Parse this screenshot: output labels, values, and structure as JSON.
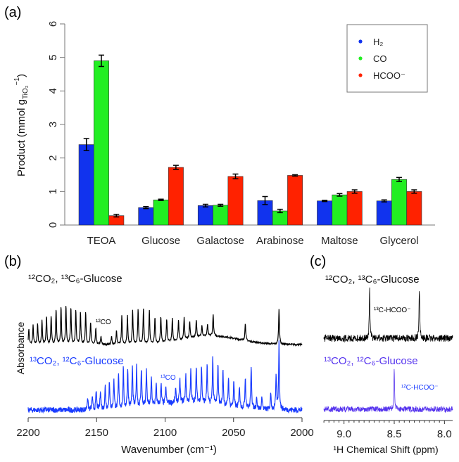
{
  "chart_data": [
    {
      "panel_label": "(a)",
      "type": "bar",
      "title": "",
      "xlabel": "",
      "ylabel": "Product (mmol g",
      "ylabel_sub": "TiO₂",
      "ylabel_sup": "−1",
      "ylabel_close": ")",
      "ylim": [
        0,
        6
      ],
      "yticks": [
        "0",
        "1",
        "2",
        "3",
        "4",
        "5",
        "6"
      ],
      "grid": false,
      "legend_position": "top-right",
      "categories": [
        "TEOA",
        "Glucose",
        "Galactose",
        "Arabinose",
        "Maltose",
        "Glycerol"
      ],
      "series": [
        {
          "name": "H₂",
          "color": "#1133ee",
          "values": [
            2.4,
            0.52,
            0.58,
            0.73,
            0.72,
            0.72
          ],
          "errors": [
            0.18,
            0.03,
            0.04,
            0.12,
            0.02,
            0.03
          ]
        },
        {
          "name": "CO",
          "color": "#22ee22",
          "values": [
            4.9,
            0.75,
            0.59,
            0.42,
            0.9,
            1.36
          ],
          "errors": [
            0.17,
            0.02,
            0.03,
            0.05,
            0.04,
            0.06
          ]
        },
        {
          "name": "HCOO⁻",
          "color": "#ff2200",
          "values": [
            0.28,
            1.72,
            1.45,
            1.48,
            1.0,
            1.0
          ],
          "errors": [
            0.04,
            0.06,
            0.07,
            0.02,
            0.05,
            0.05
          ]
        }
      ]
    },
    {
      "panel_label": "(b)",
      "type": "line",
      "xlabel": "Wavenumber (cm⁻¹)",
      "ylabel": "Absorbance",
      "xlim": [
        2200,
        2000
      ],
      "xticks": [
        "2200",
        "2150",
        "2100",
        "2050",
        "2000"
      ],
      "series": [
        {
          "name": "¹²CO₂, ¹³C₆-Glucose",
          "color": "#000000",
          "annotation": "¹²CO",
          "peaks_wavenumber": [
            2199.5,
            2196.4,
            2193.1,
            2189.9,
            2186.6,
            2183.2,
            2179.6,
            2176,
            2172.4,
            2168.8,
            2165.2,
            2161.8,
            2158,
            2154.4,
            2150.6,
            2146.8,
            2139.1,
            2135.5,
            2131.6,
            2127.5,
            2123.7,
            2119.7,
            2115.8,
            2111.5,
            2107.4,
            2103.1,
            2098.8,
            2094.7,
            2090.2,
            2086.1,
            2082,
            2077.2,
            2073.1,
            2069,
            2064.9,
            2041.4,
            2016.8
          ],
          "peaks_height": [
            0.4,
            0.48,
            0.52,
            0.62,
            0.72,
            0.72,
            0.9,
            0.95,
            1.0,
            0.95,
            0.88,
            0.84,
            0.82,
            0.58,
            0.4,
            0.2,
            0.2,
            0.35,
            0.72,
            0.72,
            0.88,
            0.88,
            0.88,
            0.85,
            0.68,
            0.68,
            0.6,
            0.58,
            0.5,
            0.55,
            0.42,
            0.45,
            0.3,
            0.3,
            0.55,
            0.45,
            0.9
          ]
        },
        {
          "name": "¹³CO₂, ¹²C₆-Glucose",
          "color": "#1a3cff",
          "annotation": "¹³CO",
          "peaks_wavenumber": [
            2156.6,
            2153.2,
            2150.3,
            2147.2,
            2143.7,
            2140.7,
            2137.4,
            2134,
            2130.5,
            2127.3,
            2123.9,
            2120.8,
            2117.3,
            2113.6,
            2110,
            2106.5,
            2102.9,
            2099.5,
            2092.3,
            2089.2,
            2084.9,
            2081.2,
            2077.2,
            2073.4,
            2069.3,
            2065.2,
            2061.4,
            2057.7,
            2053.7,
            2049.8,
            2045.7,
            2041.4,
            2037.1,
            2033.1,
            2029.2,
            2022.8,
            2018.9,
            2016.8
          ],
          "peaks_height": [
            0.33,
            0.34,
            0.48,
            0.51,
            0.6,
            0.68,
            0.78,
            0.87,
            1.0,
            1.02,
            1.02,
            1.02,
            0.99,
            0.9,
            0.7,
            0.51,
            0.48,
            0.42,
            0.33,
            0.57,
            0.68,
            0.8,
            0.87,
            0.93,
            0.96,
            1.18,
            1.05,
            0.9,
            0.75,
            0.66,
            0.57,
            0.81,
            1.11,
            0.33,
            0.34,
            0.4,
            0.87,
            1.7
          ]
        }
      ]
    },
    {
      "panel_label": "(c)",
      "type": "line",
      "xlabel": "¹H Chemical Shift (ppm)",
      "xlim": [
        9.2,
        7.92
      ],
      "xticks": [
        "9.0",
        "8.5",
        "8.0"
      ],
      "series": [
        {
          "name": "¹²CO₂, ¹³C₆-Glucose",
          "color": "#000000",
          "annotation": "¹³C-HCOO⁻",
          "peaks_ppm": [
            8.745,
            8.25
          ],
          "peaks_height": [
            1.0,
            1.0
          ]
        },
        {
          "name": "¹³CO₂, ¹²C₆-Glucose",
          "color": "#5533ee",
          "annotation": "¹²C-HCOO⁻",
          "peaks_ppm": [
            8.5
          ],
          "peaks_height": [
            1.0
          ]
        }
      ]
    }
  ]
}
